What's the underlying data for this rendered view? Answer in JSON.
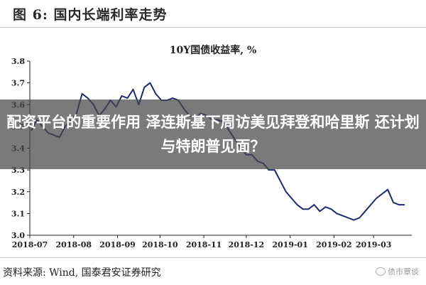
{
  "figure": {
    "title": "图 6:  国内长端利率走势"
  },
  "chart_data": {
    "type": "line",
    "title": "10Y国债收益率, %",
    "xlabel": "",
    "ylabel": "",
    "ylim": [
      3.0,
      3.8
    ],
    "y_ticks": [
      "3.0",
      "3.1",
      "3.2",
      "3.3",
      "3.4",
      "3.5",
      "3.6",
      "3.7",
      "3.8"
    ],
    "x_ticks": [
      "2018-07",
      "2018-08",
      "2018-09",
      "2018-10",
      "2018-11",
      "2018-12",
      "2019-01",
      "2019-02",
      "2019-03"
    ],
    "grid": false,
    "legend": "none",
    "series": [
      {
        "color": "#1f2a6e",
        "x": [
          "2018-07-02",
          "2018-07-06",
          "2018-07-10",
          "2018-07-14",
          "2018-07-18",
          "2018-07-22",
          "2018-07-26",
          "2018-07-30",
          "2018-08-03",
          "2018-08-07",
          "2018-08-11",
          "2018-08-15",
          "2018-08-19",
          "2018-08-23",
          "2018-08-27",
          "2018-08-31",
          "2018-09-04",
          "2018-09-08",
          "2018-09-12",
          "2018-09-16",
          "2018-09-20",
          "2018-09-24",
          "2018-09-28",
          "2018-10-02",
          "2018-10-06",
          "2018-10-10",
          "2018-10-14",
          "2018-10-18",
          "2018-10-22",
          "2018-10-26",
          "2018-10-30",
          "2018-11-03",
          "2018-11-07",
          "2018-11-11",
          "2018-11-15",
          "2018-11-19",
          "2018-11-23",
          "2018-11-27",
          "2018-12-01",
          "2018-12-05",
          "2018-12-09",
          "2018-12-13",
          "2018-12-17",
          "2018-12-21",
          "2018-12-25",
          "2018-12-29",
          "2019-01-02",
          "2019-01-06",
          "2019-01-10",
          "2019-01-14",
          "2019-01-18",
          "2019-01-22",
          "2019-01-26",
          "2019-01-30",
          "2019-02-03",
          "2019-02-07",
          "2019-02-11",
          "2019-02-15",
          "2019-02-19",
          "2019-02-23",
          "2019-02-27",
          "2019-03-03",
          "2019-03-07",
          "2019-03-11",
          "2019-03-15",
          "2019-03-19",
          "2019-03-23"
        ],
        "y": [
          3.48,
          3.53,
          3.5,
          3.47,
          3.46,
          3.45,
          3.5,
          3.53,
          3.56,
          3.65,
          3.63,
          3.6,
          3.55,
          3.58,
          3.62,
          3.59,
          3.64,
          3.63,
          3.67,
          3.6,
          3.68,
          3.7,
          3.65,
          3.62,
          3.62,
          3.63,
          3.62,
          3.58,
          3.55,
          3.54,
          3.56,
          3.55,
          3.53,
          3.53,
          3.52,
          3.48,
          3.44,
          3.4,
          3.37,
          3.37,
          3.34,
          3.33,
          3.3,
          3.3,
          3.25,
          3.2,
          3.17,
          3.14,
          3.12,
          3.12,
          3.14,
          3.11,
          3.13,
          3.12,
          3.1,
          3.09,
          3.08,
          3.07,
          3.08,
          3.11,
          3.14,
          3.17,
          3.19,
          3.21,
          3.15,
          3.14,
          3.14
        ]
      }
    ]
  },
  "overlay": {
    "headline": "配资平台的重要作用 泽连斯基下周访美见拜登和哈里斯 还计划与特朗普见面？"
  },
  "footer": {
    "source": "资料来源:  Wind, 国泰君安证券研究",
    "watermark": "债市覃谈"
  },
  "colors": {
    "line": "#1f2a6e",
    "axis": "#222222",
    "overlay": "#464646"
  }
}
